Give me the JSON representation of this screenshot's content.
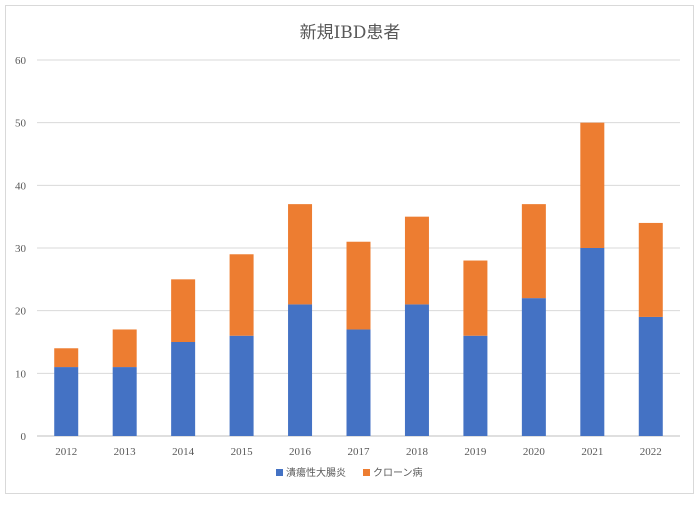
{
  "chart_data": {
    "type": "bar",
    "stacked": true,
    "title": "新規IBD患者",
    "xlabel": "",
    "ylabel": "",
    "categories": [
      "2012",
      "2013",
      "2014",
      "2015",
      "2016",
      "2017",
      "2018",
      "2019",
      "2020",
      "2021",
      "2022"
    ],
    "series": [
      {
        "name": "潰瘍性大腸炎",
        "color": "#4472c4",
        "values": [
          11,
          11,
          15,
          16,
          21,
          17,
          21,
          16,
          22,
          30,
          19
        ]
      },
      {
        "name": "クローン病",
        "color": "#ed7d31",
        "values": [
          3,
          6,
          10,
          13,
          16,
          14,
          14,
          12,
          15,
          20,
          15
        ]
      }
    ],
    "ylim": [
      0,
      60
    ],
    "yticks": [
      0,
      10,
      20,
      30,
      40,
      50,
      60
    ],
    "grid": true,
    "legend": "bottom"
  }
}
